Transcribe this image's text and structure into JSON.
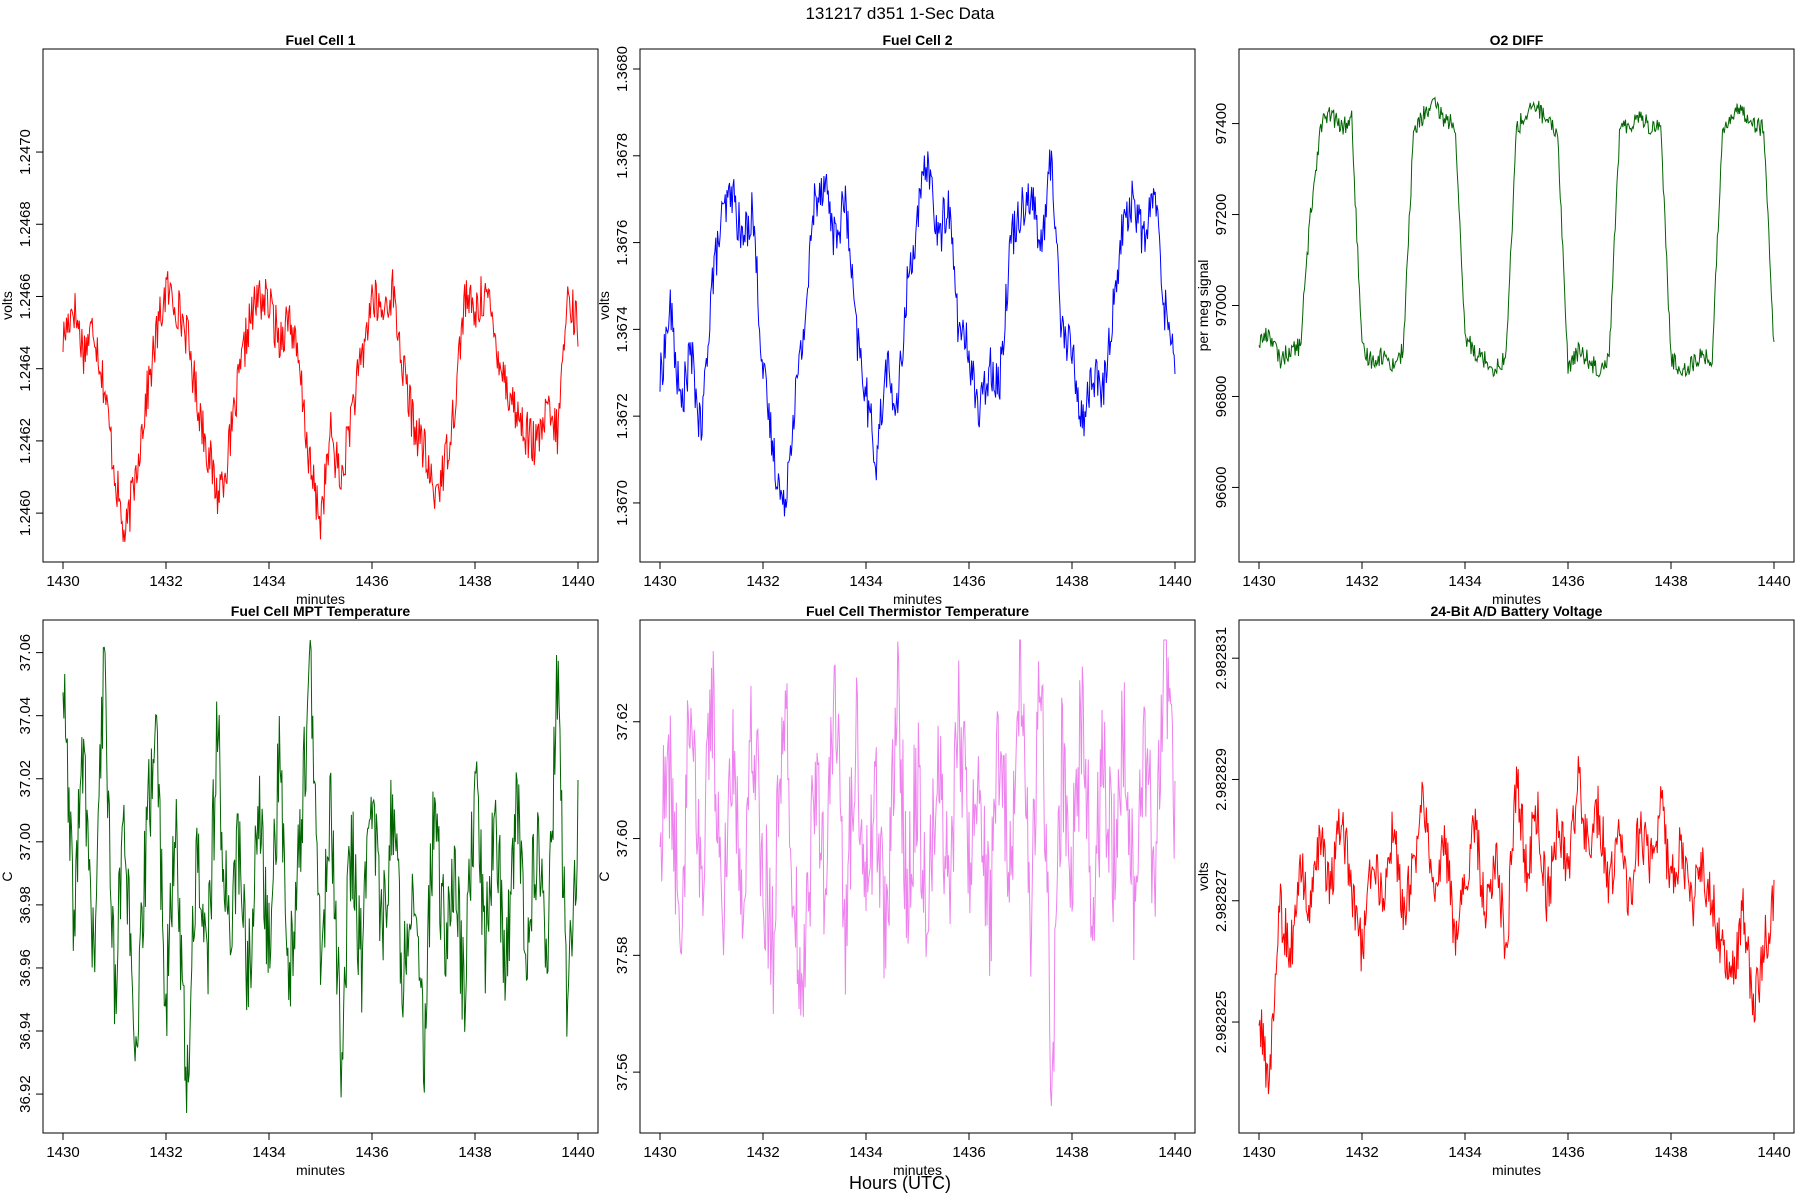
{
  "suptitle": "131217   d351   1-Sec Data",
  "outer_xlabel": "Hours (UTC)",
  "chart_data": [
    {
      "type": "line",
      "title": "Fuel Cell 1",
      "xlabel": "minutes",
      "ylabel": "volts",
      "color": "#ff0000",
      "xlim": [
        1430,
        1440
      ],
      "ylim": [
        1.24592,
        1.24723
      ],
      "xticks": [
        1430,
        1432,
        1434,
        1436,
        1438,
        1440
      ],
      "xtick_labels": [
        "1430",
        "1432",
        "1434",
        "1436",
        "1438",
        "1440"
      ],
      "yticks": [
        1.246,
        1.2462,
        1.2464,
        1.2466,
        1.2468,
        1.247
      ],
      "ytick_labels": [
        "1.2460",
        "1.2462",
        "1.2464",
        "1.2466",
        "1.2468",
        "1.2470"
      ],
      "series": [
        {
          "name": "Fuel Cell 1",
          "x": [
            1430.0,
            1430.2,
            1430.4,
            1430.6,
            1430.8,
            1431.0,
            1431.2,
            1431.4,
            1431.6,
            1431.8,
            1432.0,
            1432.2,
            1432.4,
            1432.6,
            1432.8,
            1433.0,
            1433.2,
            1433.4,
            1433.6,
            1433.8,
            1434.0,
            1434.2,
            1434.4,
            1434.6,
            1434.8,
            1435.0,
            1435.2,
            1435.4,
            1435.6,
            1435.8,
            1436.0,
            1436.2,
            1436.4,
            1436.6,
            1436.8,
            1437.0,
            1437.2,
            1437.4,
            1437.6,
            1437.8,
            1438.0,
            1438.2,
            1438.4,
            1438.6,
            1438.8,
            1439.0,
            1439.2,
            1439.4,
            1439.6,
            1439.8,
            1440.0
          ],
          "values": [
            1.24648,
            1.24658,
            1.24645,
            1.24652,
            1.24635,
            1.24612,
            1.24592,
            1.2461,
            1.2463,
            1.24648,
            1.24662,
            1.24658,
            1.2465,
            1.24632,
            1.24618,
            1.24605,
            1.24615,
            1.24635,
            1.24652,
            1.2466,
            1.24658,
            1.24648,
            1.24655,
            1.24638,
            1.24612,
            1.24598,
            1.24622,
            1.24608,
            1.24628,
            1.24642,
            1.2466,
            1.24655,
            1.24662,
            1.2464,
            1.24625,
            1.24618,
            1.24605,
            1.24612,
            1.2463,
            1.2466,
            1.24655,
            1.24662,
            1.24648,
            1.24636,
            1.24628,
            1.24622,
            1.24618,
            1.24628,
            1.24622,
            1.2466,
            1.24652
          ]
        }
      ]
    },
    {
      "type": "line",
      "title": "Fuel Cell 2",
      "xlabel": "minutes",
      "ylabel": "volts",
      "color": "#0000ff",
      "xlim": [
        1430,
        1440
      ],
      "ylim": [
        1.36691,
        1.368
      ],
      "xticks": [
        1430,
        1432,
        1434,
        1436,
        1438,
        1440
      ],
      "xtick_labels": [
        "1430",
        "1432",
        "1434",
        "1436",
        "1438",
        "1440"
      ],
      "yticks": [
        1.367,
        1.3672,
        1.3674,
        1.3676,
        1.3678,
        1.368
      ],
      "ytick_labels": [
        "1.3670",
        "1.3672",
        "1.3674",
        "1.3676",
        "1.3678",
        "1.3680"
      ],
      "series": [
        {
          "name": "Fuel Cell 2",
          "x": [
            1430.0,
            1430.2,
            1430.4,
            1430.6,
            1430.8,
            1431.0,
            1431.2,
            1431.4,
            1431.6,
            1431.8,
            1432.0,
            1432.2,
            1432.4,
            1432.6,
            1432.8,
            1433.0,
            1433.2,
            1433.4,
            1433.6,
            1433.8,
            1434.0,
            1434.2,
            1434.4,
            1434.6,
            1434.8,
            1435.0,
            1435.2,
            1435.4,
            1435.6,
            1435.8,
            1436.0,
            1436.2,
            1436.4,
            1436.6,
            1436.8,
            1437.0,
            1437.2,
            1437.4,
            1437.6,
            1437.8,
            1438.0,
            1438.2,
            1438.4,
            1438.6,
            1438.8,
            1439.0,
            1439.2,
            1439.4,
            1439.6,
            1439.8,
            1440.0
          ],
          "values": [
            1.36728,
            1.36745,
            1.36722,
            1.36735,
            1.36715,
            1.3675,
            1.36765,
            1.36772,
            1.3676,
            1.36768,
            1.3673,
            1.36712,
            1.36698,
            1.36722,
            1.3674,
            1.3677,
            1.36775,
            1.3676,
            1.3677,
            1.3674,
            1.36725,
            1.3671,
            1.36732,
            1.3672,
            1.3675,
            1.36765,
            1.3678,
            1.3676,
            1.3677,
            1.3674,
            1.36735,
            1.3672,
            1.36732,
            1.36728,
            1.3676,
            1.36768,
            1.36772,
            1.36758,
            1.3678,
            1.3674,
            1.36735,
            1.36718,
            1.3673,
            1.36725,
            1.36745,
            1.36765,
            1.3677,
            1.3676,
            1.36772,
            1.36745,
            1.36735
          ]
        }
      ]
    },
    {
      "type": "line",
      "title": "O2 DIFF",
      "xlabel": "minutes",
      "ylabel": "per meg signal",
      "color": "#006400",
      "xlim": [
        1430,
        1440
      ],
      "ylim": [
        96480,
        97520
      ],
      "xticks": [
        1430,
        1432,
        1434,
        1436,
        1438,
        1440
      ],
      "xtick_labels": [
        "1430",
        "1432",
        "1434",
        "1436",
        "1438",
        "1440"
      ],
      "yticks": [
        96600,
        96800,
        97000,
        97200,
        97400
      ],
      "ytick_labels": [
        "96600",
        "96800",
        "97000",
        "97200",
        "97400"
      ],
      "series": [
        {
          "name": "O2 DIFF",
          "x": [
            1430.0,
            1430.2,
            1430.4,
            1430.6,
            1430.8,
            1431.0,
            1431.2,
            1431.4,
            1431.6,
            1431.8,
            1432.0,
            1432.2,
            1432.4,
            1432.6,
            1432.8,
            1433.0,
            1433.2,
            1433.4,
            1433.6,
            1433.8,
            1434.0,
            1434.2,
            1434.4,
            1434.6,
            1434.8,
            1435.0,
            1435.2,
            1435.4,
            1435.6,
            1435.8,
            1436.0,
            1436.2,
            1436.4,
            1436.6,
            1436.8,
            1437.0,
            1437.2,
            1437.4,
            1437.6,
            1437.8,
            1438.0,
            1438.2,
            1438.4,
            1438.6,
            1438.8,
            1439.0,
            1439.2,
            1439.4,
            1439.6,
            1439.8,
            1440.0
          ],
          "values": [
            96920,
            96940,
            96880,
            96900,
            96910,
            97200,
            97400,
            97420,
            97390,
            97410,
            96900,
            96880,
            96890,
            96870,
            96900,
            97380,
            97420,
            97440,
            97410,
            97400,
            96930,
            96900,
            96880,
            96860,
            96890,
            97390,
            97420,
            97440,
            97400,
            97380,
            96860,
            96900,
            96880,
            96860,
            96890,
            97380,
            97400,
            97420,
            97390,
            97400,
            96880,
            96860,
            96870,
            96890,
            96880,
            97390,
            97420,
            97430,
            97400,
            97390,
            96900
          ]
        }
      ]
    },
    {
      "type": "line",
      "title": "Fuel Cell MPT Temperature",
      "xlabel": "minutes",
      "ylabel": "C",
      "color": "#006400",
      "xlim": [
        1430,
        1440
      ],
      "ylim": [
        36.914,
        37.064
      ],
      "xticks": [
        1430,
        1432,
        1434,
        1436,
        1438,
        1440
      ],
      "xtick_labels": [
        "1430",
        "1432",
        "1434",
        "1436",
        "1438",
        "1440"
      ],
      "yticks": [
        36.92,
        36.94,
        36.96,
        36.98,
        37.0,
        37.02,
        37.04,
        37.06
      ],
      "ytick_labels": [
        "36.92",
        "36.94",
        "36.96",
        "36.98",
        "37.00",
        "37.02",
        "37.04",
        "37.06"
      ],
      "series": [
        {
          "name": "Fuel Cell MPT Temperature",
          "x": [
            1430.0,
            1430.2,
            1430.4,
            1430.6,
            1430.8,
            1431.0,
            1431.2,
            1431.4,
            1431.6,
            1431.8,
            1432.0,
            1432.2,
            1432.4,
            1432.6,
            1432.8,
            1433.0,
            1433.2,
            1433.4,
            1433.6,
            1433.8,
            1434.0,
            1434.2,
            1434.4,
            1434.6,
            1434.8,
            1435.0,
            1435.2,
            1435.4,
            1435.6,
            1435.8,
            1436.0,
            1436.2,
            1436.4,
            1436.6,
            1436.8,
            1437.0,
            1437.2,
            1437.4,
            1437.6,
            1437.8,
            1438.0,
            1438.2,
            1438.4,
            1438.6,
            1438.8,
            1439.0,
            1439.2,
            1439.4,
            1439.6,
            1439.8,
            1440.0
          ],
          "values": [
            37.052,
            36.975,
            37.03,
            36.96,
            37.058,
            36.952,
            37.01,
            36.922,
            36.995,
            37.04,
            36.948,
            37.005,
            36.918,
            37.0,
            36.96,
            37.035,
            36.97,
            37.0,
            36.955,
            37.01,
            36.965,
            37.025,
            36.958,
            37.0,
            37.055,
            36.962,
            37.01,
            36.935,
            37.0,
            36.96,
            37.02,
            36.97,
            37.012,
            36.958,
            36.995,
            36.93,
            37.01,
            36.97,
            36.99,
            36.95,
            37.02,
            36.968,
            37.01,
            36.955,
            37.015,
            36.965,
            37.0,
            36.96,
            37.052,
            36.945,
            37.005
          ]
        }
      ]
    },
    {
      "type": "line",
      "title": "Fuel Cell Thermistor Temperature",
      "xlabel": "minutes",
      "ylabel": "C",
      "color": "#ee82ee",
      "xlim": [
        1430,
        1440
      ],
      "ylim": [
        37.553,
        37.634
      ],
      "xticks": [
        1430,
        1432,
        1434,
        1436,
        1438,
        1440
      ],
      "xtick_labels": [
        "1430",
        "1432",
        "1434",
        "1436",
        "1438",
        "1440"
      ],
      "yticks": [
        37.56,
        37.58,
        37.6,
        37.62
      ],
      "ytick_labels": [
        "37.56",
        "37.58",
        "37.60",
        "37.62"
      ],
      "series": [
        {
          "name": "Fuel Cell Thermistor Temperature",
          "x": [
            1430.0,
            1430.2,
            1430.4,
            1430.6,
            1430.8,
            1431.0,
            1431.2,
            1431.4,
            1431.6,
            1431.8,
            1432.0,
            1432.2,
            1432.4,
            1432.6,
            1432.8,
            1433.0,
            1433.2,
            1433.4,
            1433.6,
            1433.8,
            1434.0,
            1434.2,
            1434.4,
            1434.6,
            1434.8,
            1435.0,
            1435.2,
            1435.4,
            1435.6,
            1435.8,
            1436.0,
            1436.2,
            1436.4,
            1436.6,
            1436.8,
            1437.0,
            1437.2,
            1437.4,
            1437.6,
            1437.8,
            1438.0,
            1438.2,
            1438.4,
            1438.6,
            1438.8,
            1439.0,
            1439.2,
            1439.4,
            1439.6,
            1439.8,
            1440.0
          ],
          "values": [
            37.601,
            37.612,
            37.582,
            37.629,
            37.59,
            37.628,
            37.585,
            37.615,
            37.592,
            37.622,
            37.595,
            37.582,
            37.627,
            37.59,
            37.574,
            37.612,
            37.59,
            37.625,
            37.585,
            37.618,
            37.594,
            37.606,
            37.582,
            37.626,
            37.59,
            37.612,
            37.584,
            37.618,
            37.59,
            37.622,
            37.598,
            37.612,
            37.585,
            37.62,
            37.592,
            37.626,
            37.588,
            37.633,
            37.558,
            37.612,
            37.594,
            37.622,
            37.588,
            37.612,
            37.595,
            37.62,
            37.59,
            37.618,
            37.594,
            37.633,
            37.6
          ]
        }
      ]
    },
    {
      "type": "line",
      "title": "24-Bit A/D Battery Voltage",
      "xlabel": "minutes",
      "ylabel": "volts",
      "color": "#ff0000",
      "xlim": [
        1430,
        1440
      ],
      "ylim": [
        2.9828235,
        2.9828313
      ],
      "xticks": [
        1430,
        1432,
        1434,
        1436,
        1438,
        1440
      ],
      "xtick_labels": [
        "1430",
        "1432",
        "1434",
        "1436",
        "1438",
        "1440"
      ],
      "yticks": [
        2.982825,
        2.982827,
        2.982829,
        2.982831
      ],
      "ytick_labels": [
        "2.982825",
        "2.982827",
        "2.982829",
        "2.982831"
      ],
      "series": [
        {
          "name": "24-Bit A/D Battery Voltage",
          "x": [
            1430.0,
            1430.2,
            1430.4,
            1430.6,
            1430.8,
            1431.0,
            1431.2,
            1431.4,
            1431.6,
            1431.8,
            1432.0,
            1432.2,
            1432.4,
            1432.6,
            1432.8,
            1433.0,
            1433.2,
            1433.4,
            1433.6,
            1433.8,
            1434.0,
            1434.2,
            1434.4,
            1434.6,
            1434.8,
            1435.0,
            1435.2,
            1435.4,
            1435.6,
            1435.8,
            1436.0,
            1436.2,
            1436.4,
            1436.6,
            1436.8,
            1437.0,
            1437.2,
            1437.4,
            1437.6,
            1437.8,
            1438.0,
            1438.2,
            1438.4,
            1438.6,
            1438.8,
            1439.0,
            1439.2,
            1439.4,
            1439.6,
            1439.8,
            1440.0
          ],
          "values": [
            2.982825,
            2.982824,
            2.982827,
            2.982826,
            2.9828275,
            2.9828268,
            2.982828,
            2.9828272,
            2.9828285,
            2.982827,
            2.9828262,
            2.9828278,
            2.982827,
            2.9828282,
            2.9828268,
            2.9828275,
            2.9828288,
            2.982827,
            2.982828,
            2.9828265,
            2.9828272,
            2.9828282,
            2.9828268,
            2.9828278,
            2.9828262,
            2.982829,
            2.9828275,
            2.9828285,
            2.982827,
            2.9828282,
            2.9828275,
            2.982829,
            2.9828278,
            2.9828285,
            2.9828272,
            2.982828,
            2.982827,
            2.9828282,
            2.9828275,
            2.9828286,
            2.9828272,
            2.982828,
            2.9828268,
            2.9828276,
            2.982827,
            2.9828262,
            2.9828258,
            2.9828268,
            2.9828252,
            2.9828262,
            2.982827
          ]
        }
      ]
    }
  ]
}
